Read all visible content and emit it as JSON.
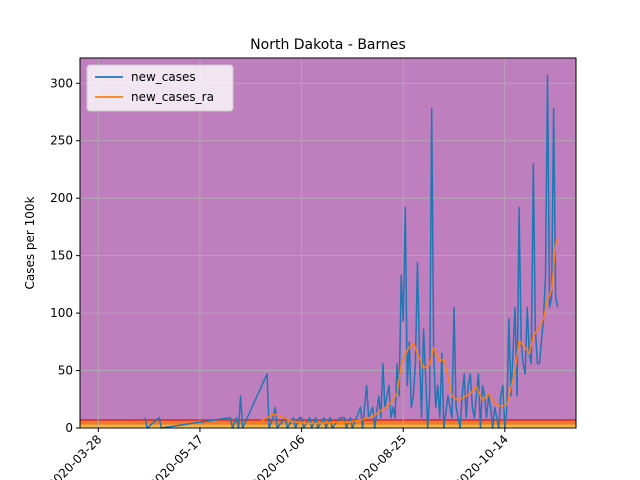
{
  "chart_data": {
    "type": "line",
    "title": "North Dakota - Barnes",
    "xlabel": "",
    "ylabel": "Cases per 100k",
    "xlim": [
      "2020-03-19",
      "2020-11-18"
    ],
    "ylim": [
      0,
      322
    ],
    "x_ticks": [
      "2020-03-28",
      "2020-05-17",
      "2020-07-06",
      "2020-08-25",
      "2020-10-14"
    ],
    "y_ticks": [
      0,
      50,
      100,
      150,
      200,
      250,
      300
    ],
    "grid": true,
    "legend_position": "top-left",
    "background_color": "#bf7fbf",
    "bands": [
      {
        "from": 0,
        "to": 1,
        "color": "#f5e663"
      },
      {
        "from": 1,
        "to": 3,
        "color": "#f7b733"
      },
      {
        "from": 3,
        "to": 7,
        "color": "#f07a2b"
      }
    ],
    "threshold_line": {
      "value": 7,
      "color": "#d62728"
    },
    "series": [
      {
        "name": "new_cases",
        "color": "#1f77b4",
        "points": [
          [
            "2020-04-20",
            9
          ],
          [
            "2020-04-21",
            0
          ],
          [
            "2020-04-27",
            9
          ],
          [
            "2020-04-28",
            0
          ],
          [
            "2020-06-01",
            9
          ],
          [
            "2020-06-02",
            0
          ],
          [
            "2020-06-04",
            9
          ],
          [
            "2020-06-05",
            0
          ],
          [
            "2020-06-06",
            28
          ],
          [
            "2020-06-07",
            0
          ],
          [
            "2020-06-19",
            47
          ],
          [
            "2020-06-20",
            0
          ],
          [
            "2020-06-22",
            9
          ],
          [
            "2020-06-23",
            18
          ],
          [
            "2020-06-24",
            0
          ],
          [
            "2020-06-28",
            9
          ],
          [
            "2020-06-29",
            0
          ],
          [
            "2020-07-02",
            9
          ],
          [
            "2020-07-03",
            0
          ],
          [
            "2020-07-05",
            9
          ],
          [
            "2020-07-06",
            9
          ],
          [
            "2020-07-07",
            0
          ],
          [
            "2020-07-10",
            9
          ],
          [
            "2020-07-11",
            0
          ],
          [
            "2020-07-13",
            9
          ],
          [
            "2020-07-14",
            0
          ],
          [
            "2020-07-17",
            9
          ],
          [
            "2020-07-18",
            0
          ],
          [
            "2020-07-20",
            9
          ],
          [
            "2020-07-21",
            0
          ],
          [
            "2020-07-25",
            9
          ],
          [
            "2020-07-26",
            9
          ],
          [
            "2020-07-27",
            9
          ],
          [
            "2020-07-28",
            0
          ],
          [
            "2020-07-30",
            9
          ],
          [
            "2020-07-31",
            0
          ],
          [
            "2020-08-04",
            18
          ],
          [
            "2020-08-05",
            0
          ],
          [
            "2020-08-07",
            37
          ],
          [
            "2020-08-08",
            9
          ],
          [
            "2020-08-10",
            18
          ],
          [
            "2020-08-11",
            0
          ],
          [
            "2020-08-13",
            28
          ],
          [
            "2020-08-14",
            9
          ],
          [
            "2020-08-15",
            56
          ],
          [
            "2020-08-16",
            18
          ],
          [
            "2020-08-18",
            37
          ],
          [
            "2020-08-19",
            9
          ],
          [
            "2020-08-20",
            18
          ],
          [
            "2020-08-21",
            9
          ],
          [
            "2020-08-22",
            56
          ],
          [
            "2020-08-23",
            28
          ],
          [
            "2020-08-24",
            133
          ],
          [
            "2020-08-25",
            93
          ],
          [
            "2020-08-26",
            192
          ],
          [
            "2020-08-27",
            37
          ],
          [
            "2020-08-28",
            75
          ],
          [
            "2020-08-29",
            18
          ],
          [
            "2020-08-30",
            28
          ],
          [
            "2020-08-31",
            56
          ],
          [
            "2020-09-01",
            144
          ],
          [
            "2020-09-02",
            65
          ],
          [
            "2020-09-03",
            9
          ],
          [
            "2020-09-04",
            86
          ],
          [
            "2020-09-05",
            47
          ],
          [
            "2020-09-06",
            0
          ],
          [
            "2020-09-07",
            28
          ],
          [
            "2020-09-08",
            278
          ],
          [
            "2020-09-09",
            65
          ],
          [
            "2020-09-10",
            18
          ],
          [
            "2020-09-11",
            37
          ],
          [
            "2020-09-12",
            9
          ],
          [
            "2020-09-13",
            65
          ],
          [
            "2020-09-14",
            0
          ],
          [
            "2020-09-16",
            28
          ],
          [
            "2020-09-17",
            18
          ],
          [
            "2020-09-18",
            9
          ],
          [
            "2020-09-19",
            105
          ],
          [
            "2020-09-20",
            18
          ],
          [
            "2020-09-21",
            9
          ],
          [
            "2020-09-22",
            0
          ],
          [
            "2020-09-23",
            28
          ],
          [
            "2020-09-24",
            47
          ],
          [
            "2020-09-25",
            9
          ],
          [
            "2020-09-26",
            37
          ],
          [
            "2020-09-27",
            47
          ],
          [
            "2020-09-28",
            18
          ],
          [
            "2020-09-29",
            9
          ],
          [
            "2020-09-30",
            28
          ],
          [
            "2020-10-01",
            47
          ],
          [
            "2020-10-02",
            0
          ],
          [
            "2020-10-03",
            37
          ],
          [
            "2020-10-04",
            28
          ],
          [
            "2020-10-05",
            9
          ],
          [
            "2020-10-06",
            28
          ],
          [
            "2020-10-07",
            18
          ],
          [
            "2020-10-08",
            0
          ],
          [
            "2020-10-09",
            18
          ],
          [
            "2020-10-10",
            9
          ],
          [
            "2020-10-11",
            0
          ],
          [
            "2020-10-12",
            28
          ],
          [
            "2020-10-13",
            37
          ],
          [
            "2020-10-14",
            0
          ],
          [
            "2020-10-15",
            18
          ],
          [
            "2020-10-16",
            95
          ],
          [
            "2020-10-17",
            28
          ],
          [
            "2020-10-18",
            65
          ],
          [
            "2020-10-19",
            105
          ],
          [
            "2020-10-20",
            28
          ],
          [
            "2020-10-21",
            192
          ],
          [
            "2020-10-22",
            75
          ],
          [
            "2020-10-23",
            56
          ],
          [
            "2020-10-24",
            47
          ],
          [
            "2020-10-25",
            105
          ],
          [
            "2020-10-26",
            65
          ],
          [
            "2020-10-27",
            56
          ],
          [
            "2020-10-28",
            230
          ],
          [
            "2020-10-29",
            86
          ],
          [
            "2020-10-30",
            56
          ],
          [
            "2020-10-31",
            56
          ],
          [
            "2020-11-01",
            75
          ],
          [
            "2020-11-02",
            95
          ],
          [
            "2020-11-03",
            133
          ],
          [
            "2020-11-04",
            307
          ],
          [
            "2020-11-05",
            105
          ],
          [
            "2020-11-06",
            114
          ],
          [
            "2020-11-07",
            278
          ],
          [
            "2020-11-08",
            114
          ],
          [
            "2020-11-09",
            105
          ]
        ]
      },
      {
        "name": "new_cases_ra",
        "color": "#ff7f0e",
        "points": [
          [
            "2020-06-14",
            4
          ],
          [
            "2020-06-22",
            12
          ],
          [
            "2020-06-26",
            10
          ],
          [
            "2020-07-01",
            6
          ],
          [
            "2020-07-08",
            4
          ],
          [
            "2020-07-15",
            4
          ],
          [
            "2020-07-22",
            5
          ],
          [
            "2020-07-29",
            5
          ],
          [
            "2020-08-04",
            7
          ],
          [
            "2020-08-10",
            10
          ],
          [
            "2020-08-14",
            15
          ],
          [
            "2020-08-18",
            20
          ],
          [
            "2020-08-22",
            30
          ],
          [
            "2020-08-24",
            55
          ],
          [
            "2020-08-27",
            68
          ],
          [
            "2020-08-30",
            74
          ],
          [
            "2020-09-01",
            65
          ],
          [
            "2020-09-04",
            52
          ],
          [
            "2020-09-07",
            55
          ],
          [
            "2020-09-09",
            70
          ],
          [
            "2020-09-12",
            58
          ],
          [
            "2020-09-14",
            60
          ],
          [
            "2020-09-16",
            45
          ],
          [
            "2020-09-18",
            28
          ],
          [
            "2020-09-21",
            24
          ],
          [
            "2020-09-24",
            27
          ],
          [
            "2020-09-27",
            30
          ],
          [
            "2020-09-30",
            36
          ],
          [
            "2020-10-03",
            24
          ],
          [
            "2020-10-06",
            30
          ],
          [
            "2020-10-09",
            22
          ],
          [
            "2020-10-12",
            19
          ],
          [
            "2020-10-15",
            20
          ],
          [
            "2020-10-17",
            35
          ],
          [
            "2020-10-19",
            50
          ],
          [
            "2020-10-21",
            76
          ],
          [
            "2020-10-24",
            70
          ],
          [
            "2020-10-26",
            65
          ],
          [
            "2020-10-28",
            80
          ],
          [
            "2020-10-31",
            88
          ],
          [
            "2020-11-02",
            95
          ],
          [
            "2020-11-04",
            112
          ],
          [
            "2020-11-06",
            120
          ],
          [
            "2020-11-08",
            160
          ],
          [
            "2020-11-09",
            165
          ]
        ]
      }
    ]
  }
}
